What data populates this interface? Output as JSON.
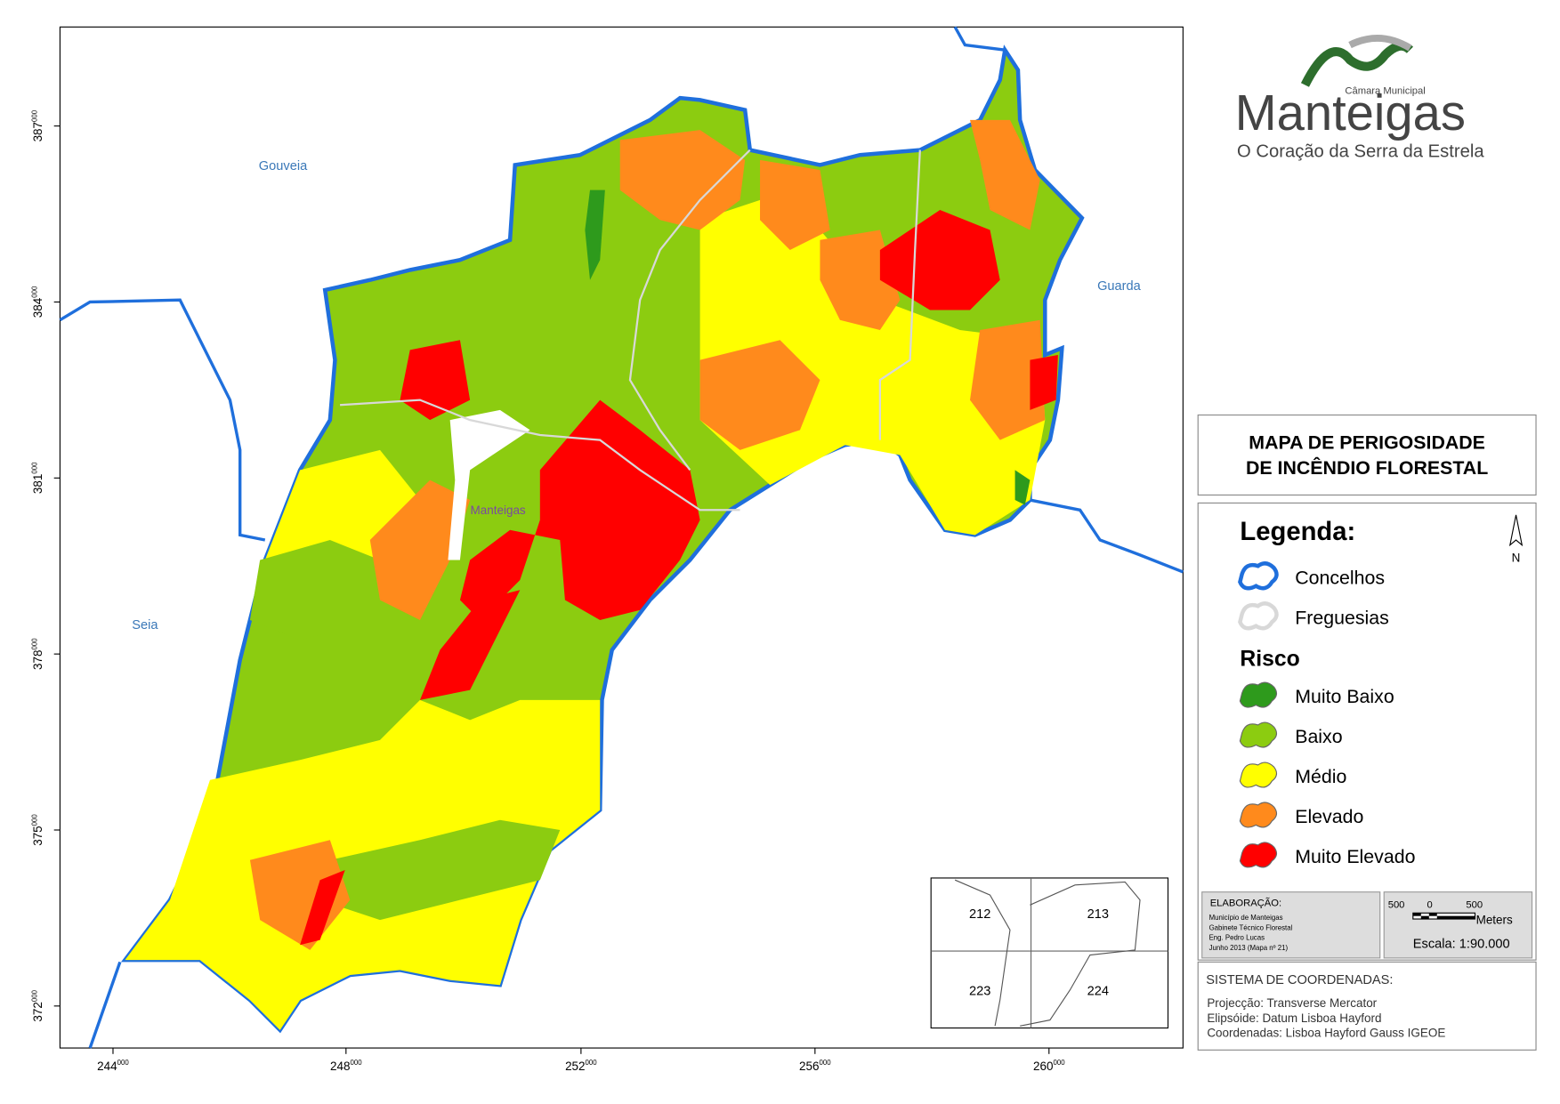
{
  "map": {
    "places": [
      {
        "label": "Gouveia"
      },
      {
        "label": "Guarda"
      },
      {
        "label": "Seia"
      },
      {
        "label": "Manteigas"
      }
    ],
    "x_ticks": [
      {
        "main": "244",
        "sup": "000"
      },
      {
        "main": "248",
        "sup": "000"
      },
      {
        "main": "252",
        "sup": "000"
      },
      {
        "main": "256",
        "sup": "000"
      },
      {
        "main": "260",
        "sup": "000"
      }
    ],
    "y_ticks": [
      {
        "main": "387",
        "sup": "000"
      },
      {
        "main": "384",
        "sup": "000"
      },
      {
        "main": "381",
        "sup": "000"
      },
      {
        "main": "378",
        "sup": "000"
      },
      {
        "main": "375",
        "sup": "000"
      },
      {
        "main": "372",
        "sup": "000"
      }
    ]
  },
  "logo": {
    "top": "Câmara Municipal",
    "name": "Manteigas",
    "tagline": "O Coração da Serra da Estrela"
  },
  "title": [
    "MAPA DE PERIGOSIDADE",
    "DE INCÊNDIO FLORESTAL"
  ],
  "legend": {
    "heading": "Legenda:",
    "north": "N",
    "boundaries": [
      {
        "label": "Concelhos",
        "color": "#1f6fdc"
      },
      {
        "label": "Freguesias",
        "color": "#d8d8d8"
      }
    ],
    "risk_heading": "Risco",
    "risk": [
      {
        "label": "Muito Baixo",
        "color": "#2e9a1c"
      },
      {
        "label": "Baixo",
        "color": "#8ccc10"
      },
      {
        "label": "Médio",
        "color": "#ffff00"
      },
      {
        "label": "Elevado",
        "color": "#ff8a1c"
      },
      {
        "label": "Muito Elevado",
        "color": "#ff0000"
      }
    ]
  },
  "credits": {
    "heading": "ELABORAÇÃO:",
    "lines": [
      "Município de Manteigas",
      "Gabinete Técnico Florestal",
      "Eng. Pedro Lucas",
      "Junho 2013 (Mapa nº 21)"
    ]
  },
  "scale": {
    "labels": [
      "500",
      "0",
      "500"
    ],
    "unit": "Meters",
    "ratio": "Escala: 1:90.000"
  },
  "coordinates": {
    "heading": "SISTEMA DE COORDENADAS:",
    "lines": [
      "Projecção: Transverse Mercator",
      "Elipsóide: Datum Lisboa Hayford",
      "Coordenadas: Lisboa Hayford Gauss IGEOE"
    ]
  },
  "inset": {
    "sheets": [
      "212",
      "213",
      "223",
      "224"
    ]
  }
}
